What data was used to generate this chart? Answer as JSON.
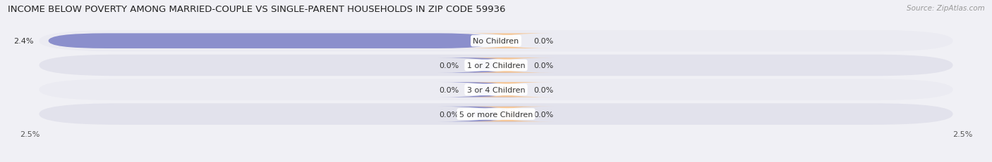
{
  "title": "INCOME BELOW POVERTY AMONG MARRIED-COUPLE VS SINGLE-PARENT HOUSEHOLDS IN ZIP CODE 59936",
  "source": "Source: ZipAtlas.com",
  "categories": [
    "No Children",
    "1 or 2 Children",
    "3 or 4 Children",
    "5 or more Children"
  ],
  "married_values": [
    2.4,
    0.0,
    0.0,
    0.0
  ],
  "single_values": [
    0.0,
    0.0,
    0.0,
    0.0
  ],
  "married_color": "#8b8fcc",
  "single_color": "#f5c89a",
  "bg_color": "#f0f0f5",
  "row_bg_light": "#ebebf2",
  "row_bg_dark": "#e2e2ec",
  "x_max": 2.5,
  "x_min": -2.5,
  "bar_height": 0.62,
  "title_fontsize": 9.5,
  "source_fontsize": 7.5,
  "label_fontsize": 8,
  "category_fontsize": 8,
  "axis_fontsize": 8,
  "min_bar_width": 0.12
}
